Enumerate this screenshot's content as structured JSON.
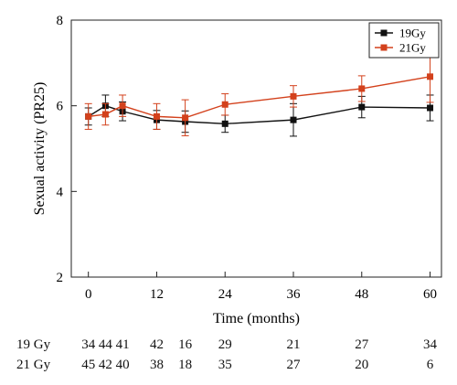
{
  "chart_data": {
    "type": "line",
    "title": "",
    "xlabel": "Time (months)",
    "ylabel": "Sexual activity (PR25)",
    "xlim": [
      -3,
      62
    ],
    "ylim": [
      2,
      8
    ],
    "xticks": [
      0,
      12,
      24,
      36,
      48,
      60
    ],
    "yticks": [
      2,
      4,
      6,
      8
    ],
    "legend_position": "top-right",
    "grid": false,
    "series": [
      {
        "name": "19Gy",
        "color": "#111111",
        "marker": "square",
        "x": [
          0,
          3,
          6,
          12,
          17,
          24,
          36,
          48,
          60
        ],
        "y": [
          5.75,
          6.0,
          5.87,
          5.67,
          5.63,
          5.58,
          5.67,
          5.97,
          5.95
        ],
        "err": [
          0.2,
          0.25,
          0.22,
          0.22,
          0.25,
          0.2,
          0.38,
          0.25,
          0.3
        ]
      },
      {
        "name": "21Gy",
        "color": "#d3411c",
        "marker": "square",
        "x": [
          0,
          3,
          6,
          12,
          17,
          24,
          36,
          48,
          60
        ],
        "y": [
          5.75,
          5.8,
          6.0,
          5.75,
          5.72,
          6.03,
          6.22,
          6.4,
          6.68
        ],
        "err": [
          0.3,
          0.25,
          0.25,
          0.3,
          0.42,
          0.25,
          0.25,
          0.3,
          0.6
        ]
      }
    ]
  },
  "n_table": {
    "rows": [
      {
        "label": "19 Gy",
        "values": [
          "34",
          "44",
          "41",
          "42",
          "16",
          "29",
          "21",
          "27",
          "34"
        ]
      },
      {
        "label": "21 Gy",
        "values": [
          "45",
          "42",
          "40",
          "38",
          "18",
          "35",
          "27",
          "20",
          "6"
        ]
      }
    ]
  }
}
